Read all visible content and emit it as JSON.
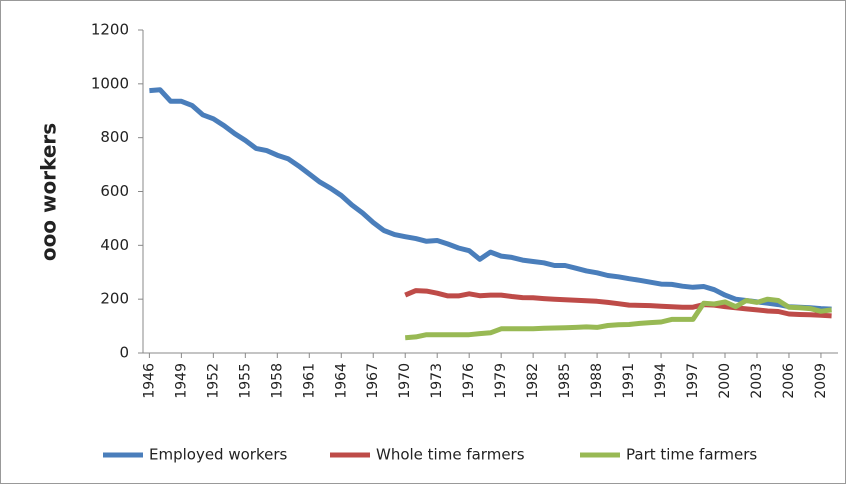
{
  "chart_data": {
    "type": "line",
    "y_label": "ooo workers",
    "x": [
      1946,
      1947,
      1948,
      1949,
      1950,
      1951,
      1952,
      1953,
      1954,
      1955,
      1956,
      1957,
      1958,
      1959,
      1960,
      1961,
      1962,
      1963,
      1964,
      1965,
      1966,
      1967,
      1968,
      1969,
      1970,
      1971,
      1972,
      1973,
      1974,
      1975,
      1976,
      1977,
      1978,
      1979,
      1980,
      1981,
      1982,
      1983,
      1984,
      1985,
      1986,
      1987,
      1988,
      1989,
      1990,
      1991,
      1992,
      1993,
      1994,
      1995,
      1996,
      1997,
      1998,
      1999,
      2000,
      2001,
      2002,
      2003,
      2004,
      2005,
      2006,
      2007,
      2008,
      2009,
      2010
    ],
    "xlim": [
      1945.4,
      2010.6
    ],
    "xticks": [
      1946,
      1949,
      1952,
      1955,
      1958,
      1961,
      1964,
      1967,
      1970,
      1973,
      1976,
      1979,
      1982,
      1985,
      1988,
      1991,
      1994,
      1997,
      2000,
      2003,
      2006,
      2009
    ],
    "ylim": [
      0,
      1200
    ],
    "yticks": [
      0,
      200,
      400,
      600,
      800,
      1000,
      1200
    ],
    "grid": false,
    "legend_position": "bottom",
    "series": [
      {
        "name": "Employed workers",
        "color": "#4a7ebb",
        "values": [
          975,
          978,
          935,
          935,
          920,
          885,
          870,
          845,
          815,
          790,
          760,
          752,
          735,
          722,
          695,
          665,
          635,
          612,
          585,
          550,
          520,
          485,
          455,
          440,
          432,
          425,
          415,
          418,
          405,
          390,
          380,
          348,
          375,
          360,
          355,
          345,
          340,
          335,
          325,
          325,
          315,
          305,
          298,
          288,
          283,
          276,
          270,
          263,
          256,
          255,
          248,
          244,
          247,
          235,
          215,
          200,
          195,
          190,
          185,
          180,
          172,
          170,
          168,
          165,
          163
        ]
      },
      {
        "name": "Whole time farmers",
        "color": "#be4b48",
        "values": [
          null,
          null,
          null,
          null,
          null,
          null,
          null,
          null,
          null,
          null,
          null,
          null,
          null,
          null,
          null,
          null,
          null,
          null,
          null,
          null,
          null,
          null,
          null,
          null,
          215,
          232,
          230,
          222,
          212,
          212,
          220,
          213,
          215,
          215,
          210,
          206,
          205,
          202,
          200,
          198,
          196,
          194,
          192,
          188,
          183,
          178,
          177,
          176,
          174,
          172,
          170,
          170,
          180,
          178,
          172,
          168,
          164,
          160,
          156,
          154,
          145,
          143,
          142,
          140,
          138
        ]
      },
      {
        "name": "Part time farmers",
        "color": "#98b954",
        "values": [
          null,
          null,
          null,
          null,
          null,
          null,
          null,
          null,
          null,
          null,
          null,
          null,
          null,
          null,
          null,
          null,
          null,
          null,
          null,
          null,
          null,
          null,
          null,
          null,
          57,
          60,
          68,
          68,
          68,
          68,
          68,
          72,
          75,
          90,
          90,
          90,
          90,
          92,
          93,
          94,
          95,
          97,
          95,
          102,
          105,
          106,
          110,
          113,
          115,
          125,
          125,
          125,
          185,
          182,
          190,
          172,
          195,
          188,
          200,
          195,
          170,
          168,
          165,
          155,
          160
        ]
      }
    ]
  }
}
